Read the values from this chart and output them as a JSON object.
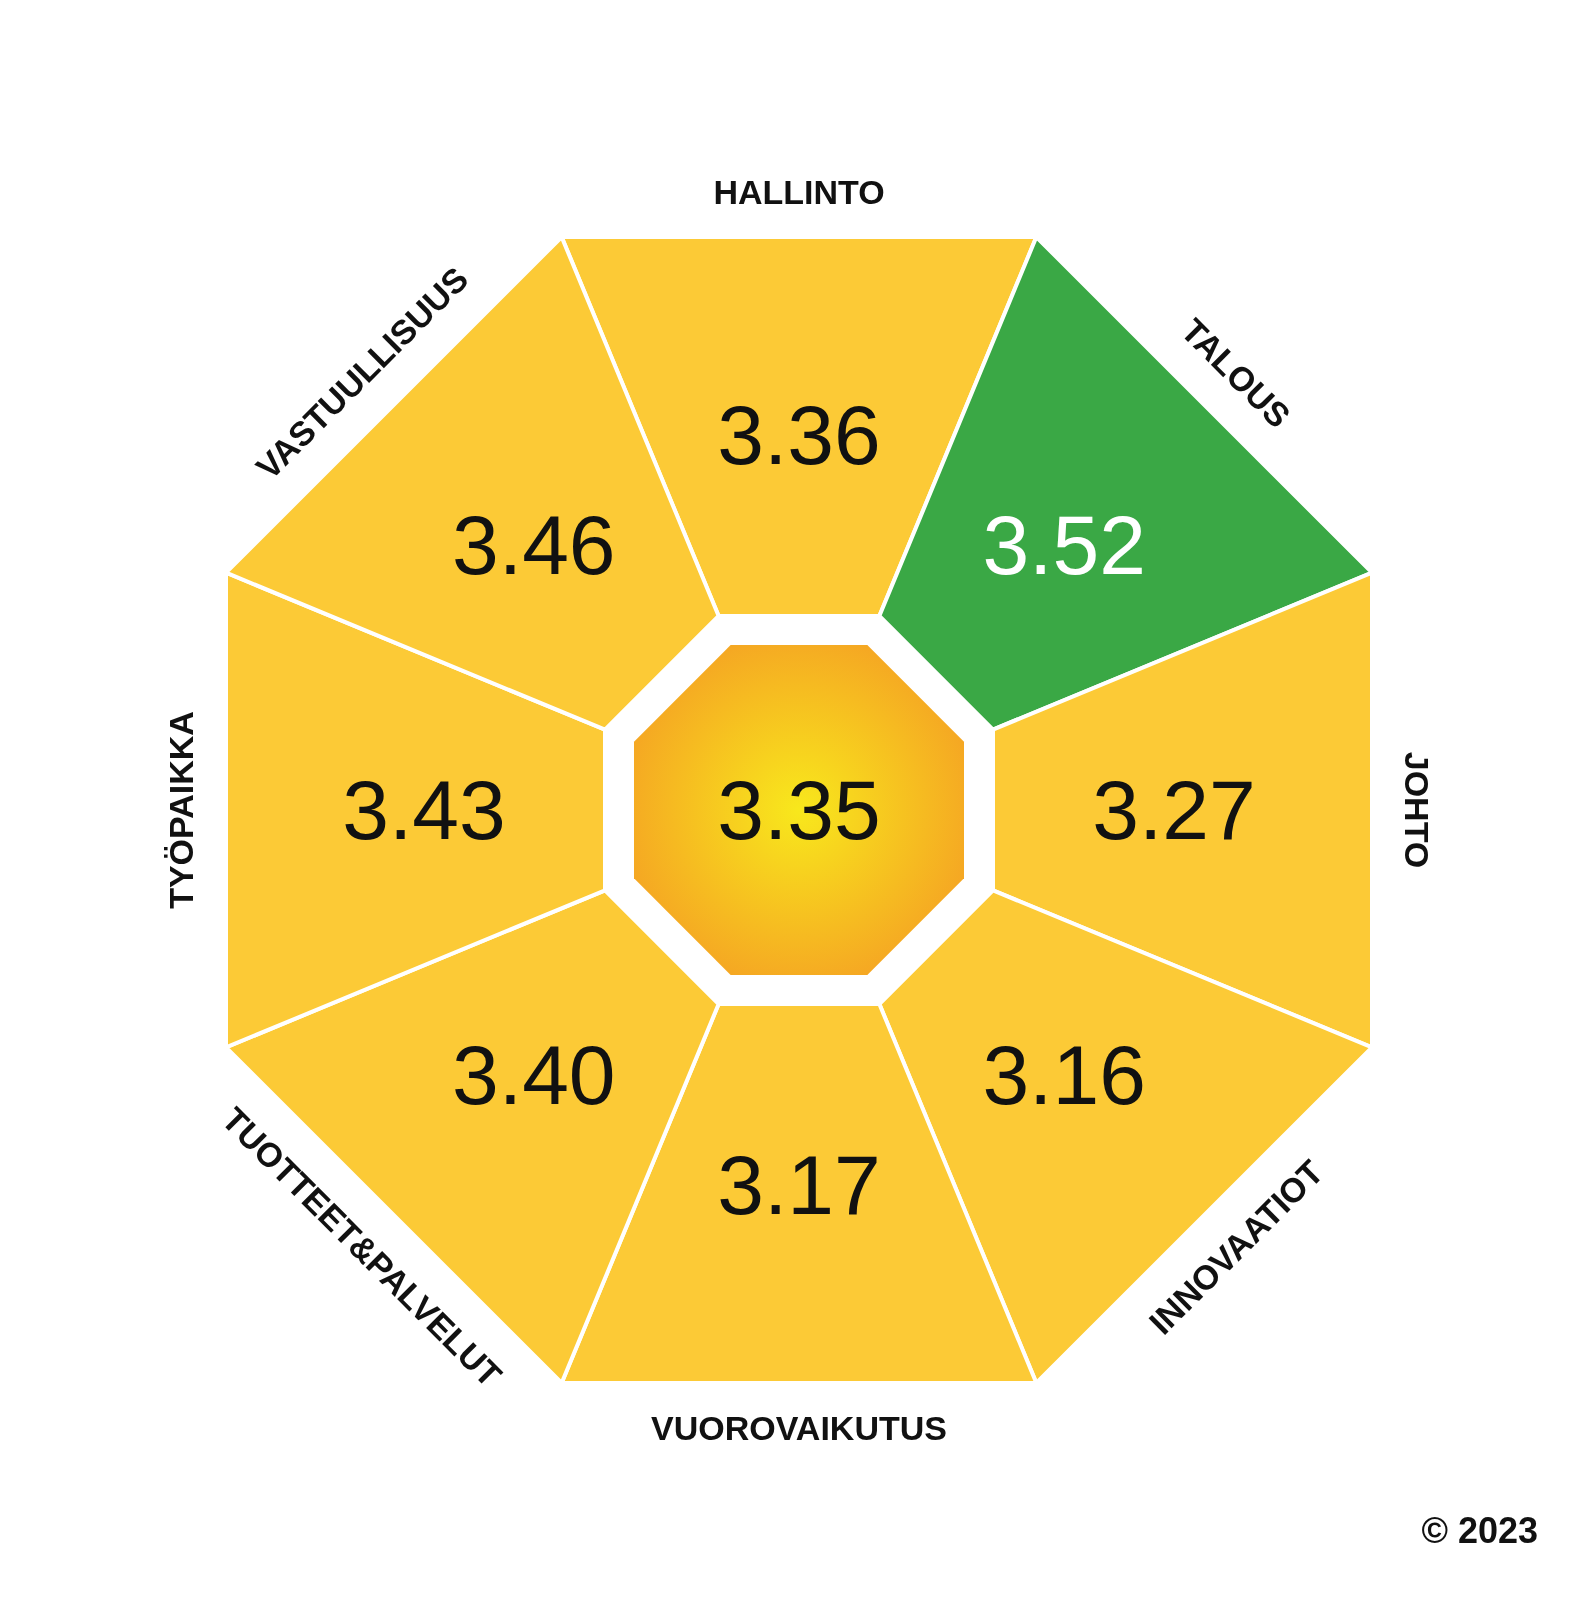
{
  "chart_data": {
    "type": "other",
    "categories": [
      "HALLINTO",
      "TALOUS",
      "JOHTO",
      "INNOVAATIOT",
      "VUOROVAIKUTUS",
      "TUOTTEET&PALVELUT",
      "TYÖPAIKKA",
      "VASTUULLISUUS"
    ],
    "values": [
      3.36,
      3.52,
      3.27,
      3.16,
      3.17,
      3.4,
      3.43,
      3.46
    ],
    "value_labels": [
      "3.36",
      "3.52",
      "3.27",
      "3.16",
      "3.17",
      "3.40",
      "3.43",
      "3.46"
    ],
    "colors": [
      "#fcca36",
      "#3aa845",
      "#fcca36",
      "#fcca36",
      "#fcca36",
      "#fcca36",
      "#fcca36",
      "#fcca36"
    ],
    "annotations": [
      "3.35",
      "© 2023"
    ]
  }
}
